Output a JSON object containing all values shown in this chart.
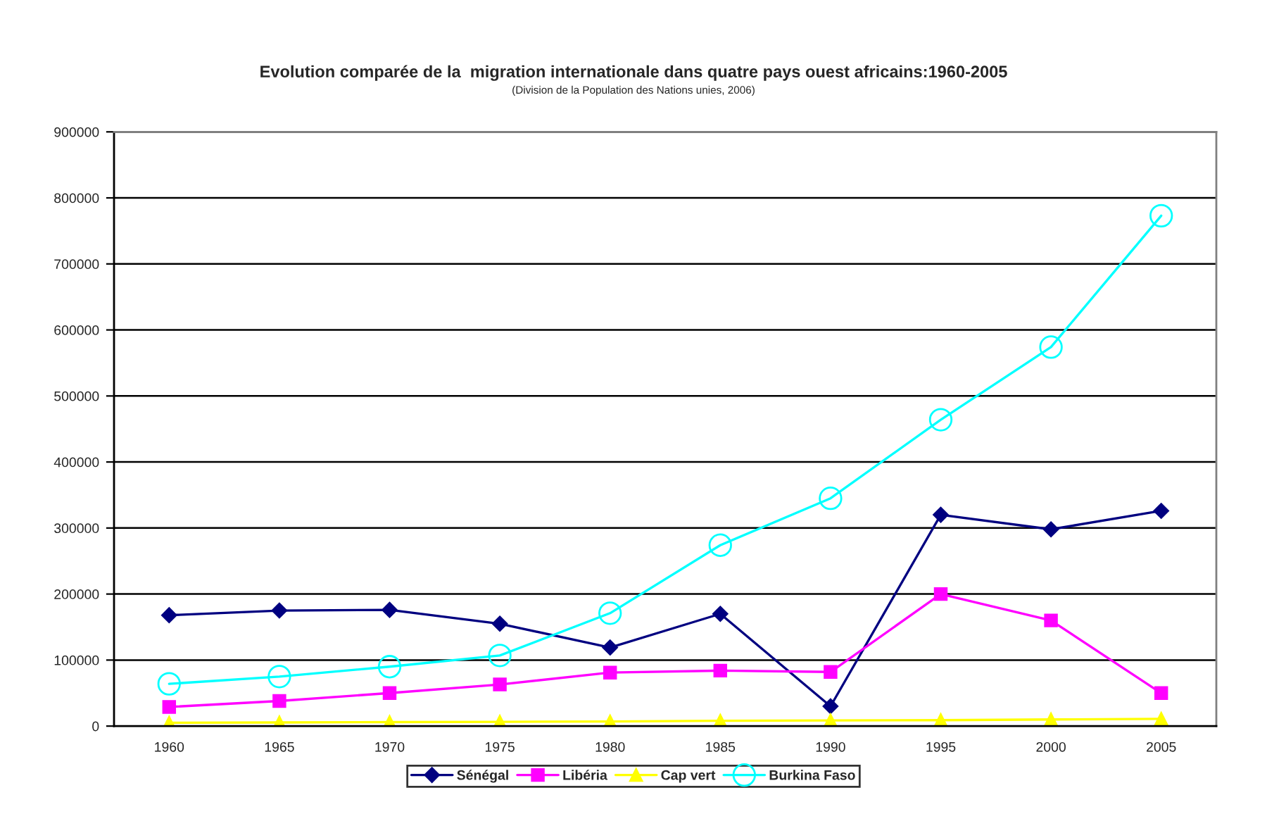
{
  "chart_data": {
    "type": "line",
    "title": "Evolution comparée de la  migration internationale dans quatre pays ouest africains:1960-2005",
    "subtitle": "(Division de la Population des Nations unies, 2006)",
    "categories": [
      "1960",
      "1965",
      "1970",
      "1975",
      "1980",
      "1985",
      "1990",
      "1995",
      "2000",
      "2005"
    ],
    "series": [
      {
        "name": "Sénégal",
        "color": "#000080",
        "marker": "diamond",
        "values": [
          168000,
          175000,
          176000,
          155000,
          119000,
          170000,
          30000,
          320000,
          298000,
          326000
        ]
      },
      {
        "name": "Libéria",
        "color": "#ff00ff",
        "marker": "square",
        "values": [
          29000,
          38000,
          50000,
          63000,
          81000,
          84000,
          82000,
          200000,
          160000,
          50000
        ]
      },
      {
        "name": "Cap vert",
        "color": "#ffff00",
        "marker": "triangle",
        "values": [
          5000,
          5500,
          6000,
          6500,
          7000,
          8000,
          8500,
          9000,
          10000,
          11000
        ]
      },
      {
        "name": "Burkina Faso",
        "color": "#00ffff",
        "marker": "circle",
        "values": [
          64000,
          75000,
          90000,
          107000,
          171000,
          274000,
          345000,
          464000,
          574000,
          773000
        ]
      }
    ],
    "ylim": [
      0,
      900000
    ],
    "yticks": [
      0,
      100000,
      200000,
      300000,
      400000,
      500000,
      600000,
      700000,
      800000,
      900000
    ],
    "grid": "y",
    "legend": "bottom",
    "line_style": "solid"
  }
}
